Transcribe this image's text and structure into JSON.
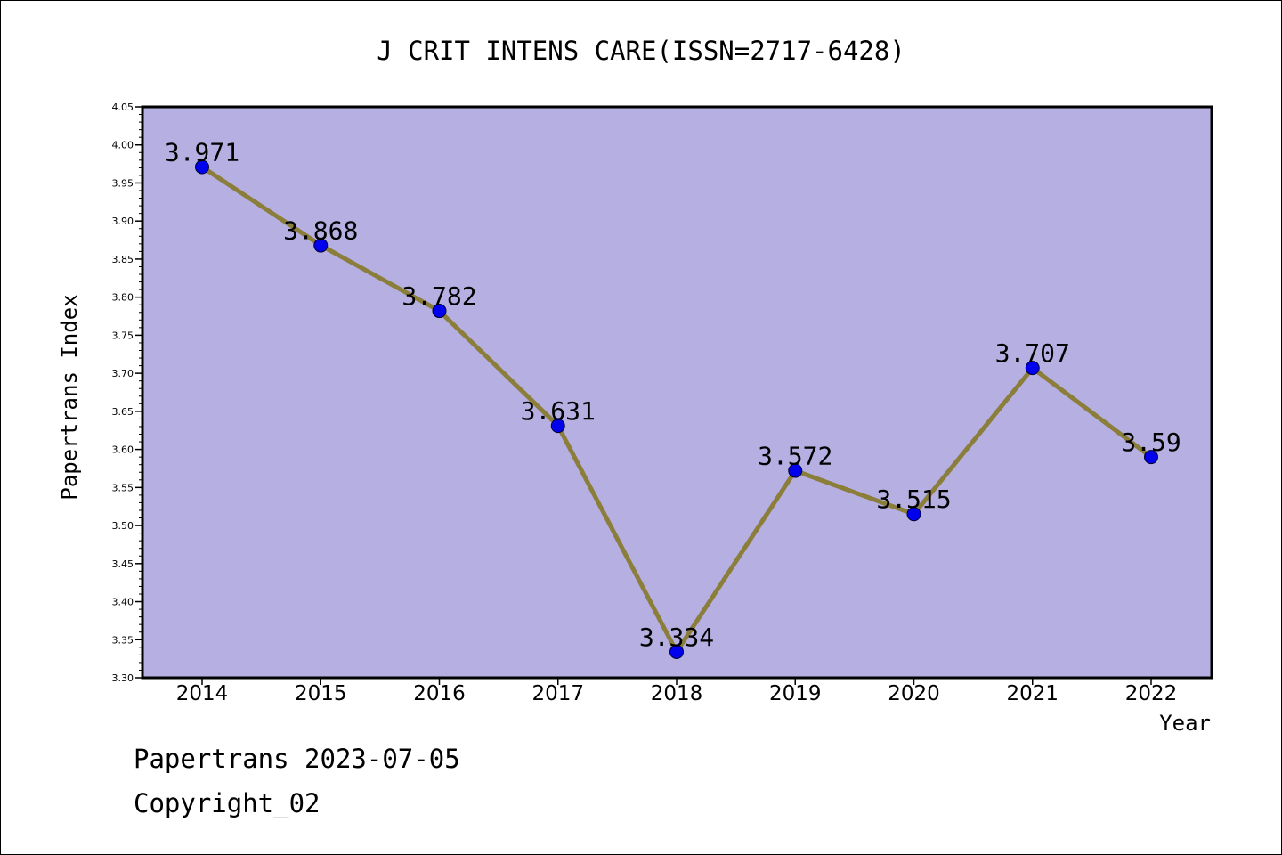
{
  "chart_data": {
    "type": "line",
    "title": "J CRIT INTENS CARE(ISSN=2717-6428)",
    "xlabel": "Year",
    "ylabel": "Papertrans Index",
    "categories": [
      "2014",
      "2015",
      "2016",
      "2017",
      "2018",
      "2019",
      "2020",
      "2021",
      "2022"
    ],
    "values": [
      3.971,
      3.868,
      3.782,
      3.631,
      3.334,
      3.572,
      3.515,
      3.707,
      3.59
    ],
    "data_labels": [
      "3.971",
      "3.868",
      "3.782",
      "3.631",
      "3.334",
      "3.572",
      "3.515",
      "3.707",
      "3.59"
    ],
    "ylim": [
      3.3,
      4.05
    ],
    "yticks": [
      "3.30",
      "3.35",
      "3.40",
      "3.45",
      "3.50",
      "3.55",
      "3.60",
      "3.65",
      "3.70",
      "3.75",
      "3.80",
      "3.85",
      "3.90",
      "3.95",
      "4.00",
      "4.05"
    ],
    "grid": false,
    "legend": "none",
    "colors": {
      "plot_background": "#b5afe2",
      "line": "#8b7d3a",
      "marker": "#0000ee"
    }
  },
  "footer": {
    "line1": "Papertrans 2023-07-05",
    "line2": "Copyright_02"
  }
}
